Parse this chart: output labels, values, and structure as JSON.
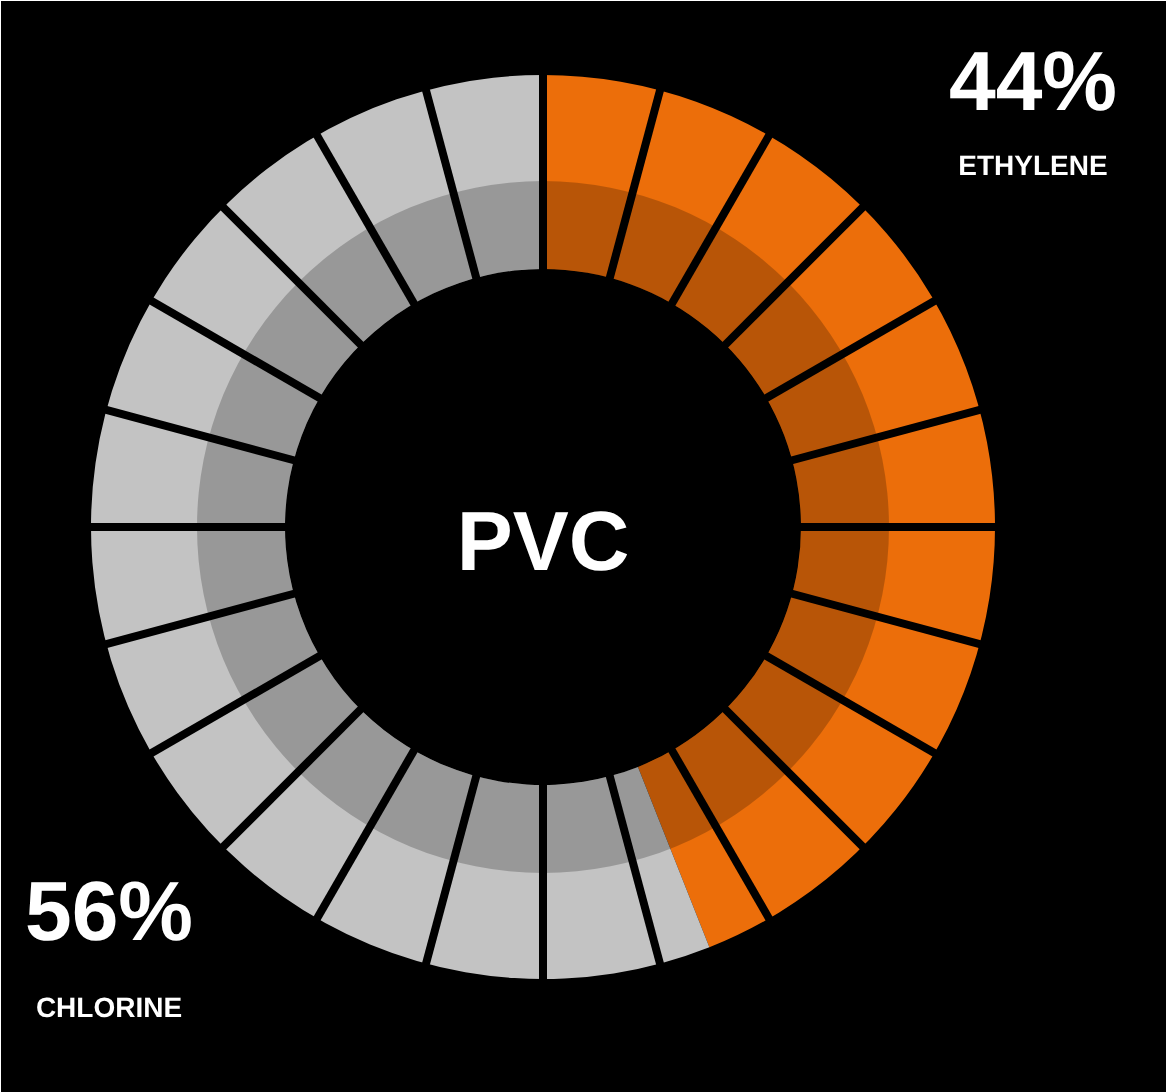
{
  "chart_data": {
    "type": "donut",
    "title": "PVC",
    "categories": [
      "ETHYLENE",
      "CHLORINE"
    ],
    "values": [
      44,
      56
    ],
    "colors": [
      "#ec6e0a",
      "#c3c3c3"
    ],
    "value_labels": [
      "44%",
      "56%"
    ]
  }
}
